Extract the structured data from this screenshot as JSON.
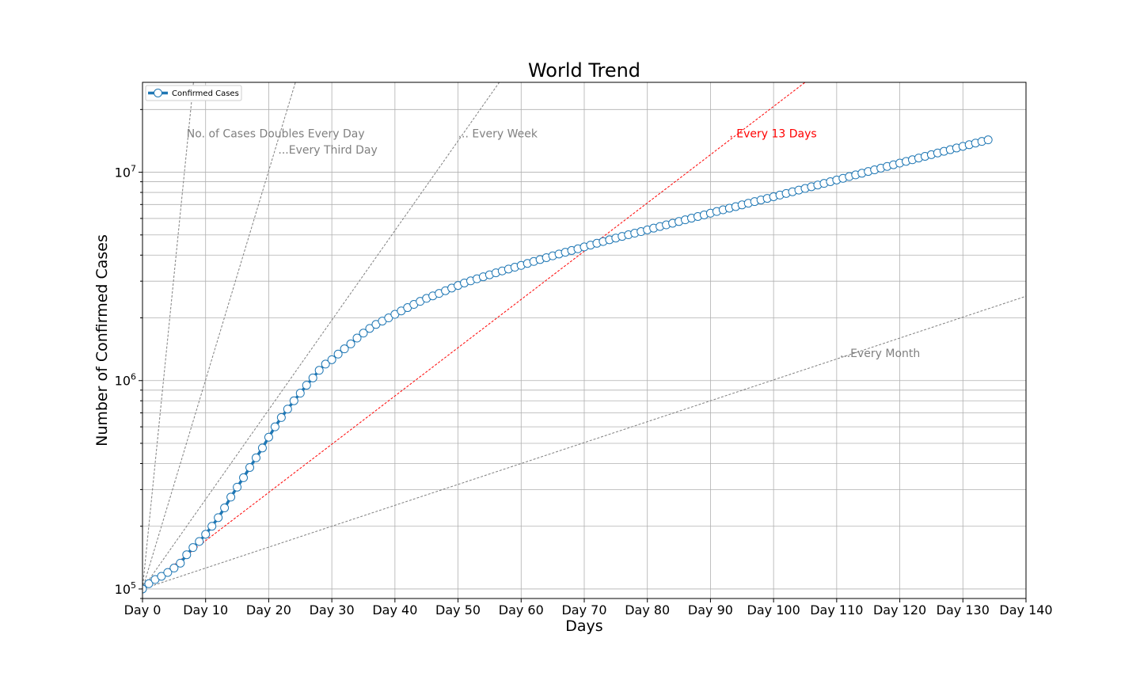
{
  "chart_data": {
    "type": "line",
    "title": "World Trend",
    "xlabel": "Days",
    "ylabel": "Number of Confirmed Cases",
    "yscale": "log",
    "xlim": [
      0,
      140
    ],
    "ylim": [
      90000,
      27000000
    ],
    "x_ticks": [
      0,
      10,
      20,
      30,
      40,
      50,
      60,
      70,
      80,
      90,
      100,
      110,
      120,
      130,
      140
    ],
    "x_tick_labels": [
      "Day 0",
      "Day 10",
      "Day 20",
      "Day 30",
      "Day 40",
      "Day 50",
      "Day 60",
      "Day 70",
      "Day 80",
      "Day 90",
      "Day 100",
      "Day 110",
      "Day 120",
      "Day 130",
      "Day 140"
    ],
    "y_ticks": [
      {
        "value": 100000,
        "base": "10",
        "exp": "5"
      },
      {
        "value": 1000000,
        "base": "10",
        "exp": "6"
      },
      {
        "value": 10000000,
        "base": "10",
        "exp": "7"
      }
    ],
    "grid": true,
    "legend_position": "top-left",
    "legend_entries": [
      "Confirmed Cases"
    ],
    "series": [
      {
        "name": "Confirmed Cases",
        "color": "#1f77b4",
        "x_start": 0,
        "x_step": 1,
        "values": [
          100000,
          106000,
          111000,
          115000,
          120000,
          126000,
          133000,
          146000,
          158000,
          169000,
          183000,
          200000,
          220000,
          245000,
          276000,
          308000,
          342000,
          383000,
          426000,
          475000,
          535000,
          600000,
          665000,
          730000,
          800000,
          870000,
          950000,
          1030000,
          1120000,
          1200000,
          1260000,
          1340000,
          1420000,
          1500000,
          1600000,
          1690000,
          1780000,
          1860000,
          1930000,
          2000000,
          2080000,
          2160000,
          2240000,
          2320000,
          2400000,
          2480000,
          2550000,
          2620000,
          2700000,
          2780000,
          2860000,
          2940000,
          3010000,
          3080000,
          3150000,
          3220000,
          3290000,
          3360000,
          3430000,
          3500000,
          3570000,
          3650000,
          3730000,
          3810000,
          3890000,
          3970000,
          4050000,
          4130000,
          4210000,
          4290000,
          4380000,
          4470000,
          4560000,
          4650000,
          4740000,
          4830000,
          4920000,
          5010000,
          5100000,
          5190000,
          5290000,
          5390000,
          5490000,
          5590000,
          5690000,
          5800000,
          5910000,
          6020000,
          6130000,
          6240000,
          6360000,
          6480000,
          6600000,
          6720000,
          6840000,
          6970000,
          7100000,
          7230000,
          7360000,
          7490000,
          7630000,
          7770000,
          7910000,
          8060000,
          8210000,
          8360000,
          8520000,
          8680000,
          8840000,
          9010000,
          9180000,
          9350000,
          9530000,
          9710000,
          9890000,
          10080000,
          10270000,
          10460000,
          10660000,
          10860000,
          11060000,
          11270000,
          11480000,
          11700000,
          11920000,
          12140000,
          12370000,
          12600000,
          12830000,
          13070000,
          13310000,
          13550000,
          13800000,
          14050000,
          14300000
        ]
      }
    ],
    "reference_lines": [
      {
        "doubling_days": 1,
        "color": "#808080",
        "label": "No. of Cases Doubles Every Day",
        "label_x": 7,
        "label_y": 14700000
      },
      {
        "doubling_days": 3,
        "color": "#808080",
        "label": "...Every Third Day",
        "label_x": 21.5,
        "label_y": 12300000
      },
      {
        "doubling_days": 7,
        "color": "#808080",
        "label": "... Every Week",
        "label_x": 50,
        "label_y": 14700000
      },
      {
        "doubling_days": 13,
        "color": "#ff0000",
        "label": ". Every 13 Days",
        "label_x": 93,
        "label_y": 14700000
      },
      {
        "doubling_days": 30,
        "color": "#808080",
        "label": "...Every Month",
        "label_x": 110.5,
        "label_y": 1300000
      }
    ]
  }
}
